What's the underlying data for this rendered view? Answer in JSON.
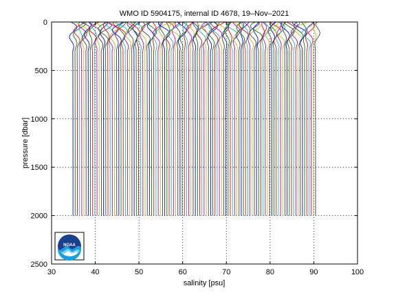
{
  "chart_data": {
    "type": "line",
    "title": "WMO ID 5904175, internal ID 4678, 19–Nov–2021",
    "xlabel": "salinity [psu]",
    "ylabel": "pressure [dbar]",
    "xlim": [
      30,
      100
    ],
    "ylim": [
      0,
      2500
    ],
    "y_reversed": true,
    "xticks": [
      "30",
      "40",
      "50",
      "60",
      "70",
      "80",
      "90",
      "100"
    ],
    "yticks": [
      "0",
      "500",
      "1000",
      "1500",
      "2000",
      "2500"
    ],
    "grid": true,
    "grid_style": "dotted",
    "profile_count": 112,
    "profile_bottom_pressure": 2000,
    "first_profile_deep_salinity": 34.9,
    "profile_offset_step": 0.5,
    "series_colors": [
      "#0000ff",
      "#008000",
      "#ff0000",
      "#00bfbf",
      "#bf00bf",
      "#bfbf00",
      "#404040"
    ]
  },
  "logo": {
    "name": "noaa-logo",
    "text": "NOAA"
  }
}
